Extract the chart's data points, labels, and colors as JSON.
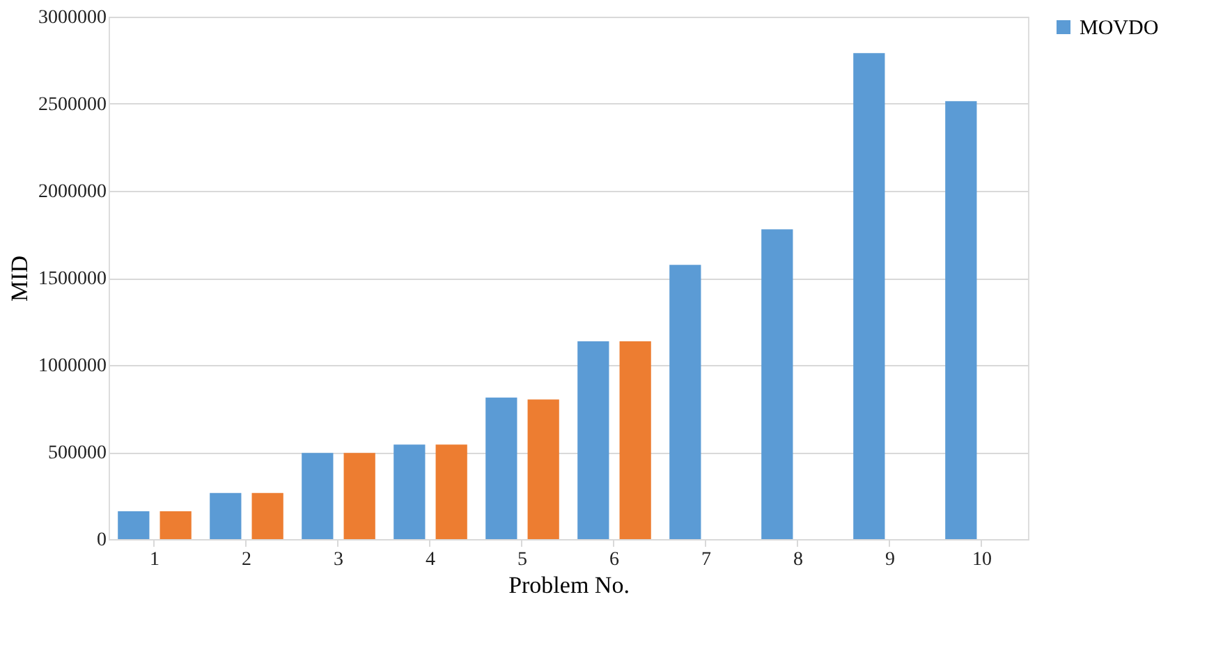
{
  "chart_data": {
    "type": "bar",
    "xlabel": "Problem No.",
    "ylabel": "MID",
    "categories": [
      "1",
      "2",
      "3",
      "4",
      "5",
      "6",
      "7",
      "8",
      "9",
      "10"
    ],
    "series": [
      {
        "name": "MOVDO",
        "color": "#5b9bd5",
        "values": [
          160000,
          265000,
          495000,
          543000,
          813000,
          1136000,
          1575000,
          1779000,
          2791000,
          2515000
        ]
      },
      {
        "color": "#ed7d31",
        "values": [
          160000,
          265000,
          495000,
          543000,
          802000,
          1136000,
          null,
          null,
          null,
          null
        ]
      }
    ],
    "ylim": [
      0,
      3000000
    ],
    "yticks": [
      0,
      500000,
      1000000,
      1500000,
      2000000,
      2500000,
      3000000
    ],
    "grid": "y",
    "legend": "right"
  }
}
